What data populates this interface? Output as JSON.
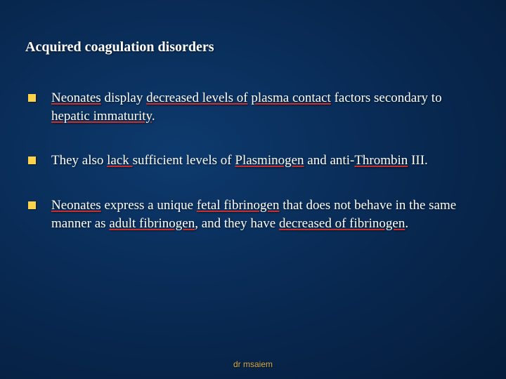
{
  "slide": {
    "title": "Acquired coagulation disorders",
    "title_fontsize": 20,
    "title_color": "#ffffff",
    "background_gradient": [
      "#0d3a6e",
      "#082850",
      "#051c3a"
    ],
    "bullet_marker_color": "#ffd24a",
    "bullet_marker_size": 11,
    "body_fontsize": 19,
    "body_color": "#ffffff",
    "underline_color": "#c73030",
    "bullets": [
      {
        "segments": [
          {
            "text": "Neonates",
            "underline": true
          },
          {
            "text": " display ",
            "underline": false
          },
          {
            "text": "decreased levels of",
            "underline": true
          },
          {
            "text": " ",
            "underline": false
          },
          {
            "text": "plasma contact",
            "underline": true
          },
          {
            "text": " factors secondary to ",
            "underline": false
          },
          {
            "text": "hepatic immaturity",
            "underline": true
          },
          {
            "text": ".",
            "underline": false
          }
        ]
      },
      {
        "segments": [
          {
            "text": "They also ",
            "underline": false
          },
          {
            "text": "lack ",
            "underline": true
          },
          {
            "text": "sufficient levels of ",
            "underline": false
          },
          {
            "text": "Plasminogen",
            "underline": true
          },
          {
            "text": " and anti-",
            "underline": false
          },
          {
            "text": "Thrombin",
            "underline": true
          },
          {
            "text": " III.",
            "underline": false
          }
        ]
      },
      {
        "segments": [
          {
            "text": "Neonates",
            "underline": true
          },
          {
            "text": " express a unique ",
            "underline": false
          },
          {
            "text": "fetal fibrinogen",
            "underline": true
          },
          {
            "text": " that does not behave in the same manner as ",
            "underline": false
          },
          {
            "text": "adult fibrinogen",
            "underline": true
          },
          {
            "text": ", and they have ",
            "underline": false
          },
          {
            "text": "decreased of fibrinogen",
            "underline": true
          },
          {
            "text": ".",
            "underline": false
          }
        ]
      }
    ],
    "footer": "dr msaiem",
    "footer_color": "#d8a94a",
    "footer_fontsize": 12
  }
}
